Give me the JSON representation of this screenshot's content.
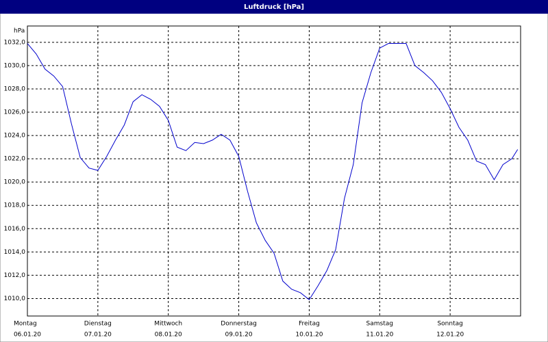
{
  "chart_data": {
    "type": "line",
    "title": "Luftdruck [hPa]",
    "y_unit": "hPa",
    "x": [
      0,
      3,
      6,
      9,
      12,
      15,
      18,
      21,
      24,
      27,
      30,
      33,
      36,
      39,
      42,
      45,
      48,
      51,
      54,
      57,
      60,
      63,
      66,
      69,
      72,
      75,
      78,
      81,
      84,
      87,
      90,
      93,
      96,
      99,
      102,
      105,
      108,
      111,
      114,
      117,
      120,
      123,
      126,
      129,
      132,
      135,
      138,
      141,
      144,
      147,
      150,
      153,
      156,
      159,
      162,
      165,
      167
    ],
    "series": [
      {
        "name": "Luftdruck",
        "color": "#0000cc",
        "values": [
          1031.9,
          1031.0,
          1029.7,
          1029.1,
          1028.2,
          1025.0,
          1022.1,
          1021.2,
          1021.0,
          1022.2,
          1023.6,
          1024.9,
          1026.9,
          1027.5,
          1027.1,
          1026.5,
          1025.3,
          1023.0,
          1022.7,
          1023.4,
          1023.3,
          1023.6,
          1024.1,
          1023.6,
          1022.2,
          1019.2,
          1016.5,
          1015.0,
          1013.9,
          1011.5,
          1010.8,
          1010.5,
          1009.9,
          1011.1,
          1012.4,
          1014.2,
          1018.6,
          1021.5,
          1026.8,
          1029.4,
          1031.5,
          1031.9,
          1031.9,
          1031.9,
          1030.0,
          1029.4,
          1028.7,
          1027.7,
          1026.3,
          1024.7,
          1023.6,
          1021.8,
          1021.5,
          1020.2,
          1021.5,
          1022.0,
          1022.8
        ]
      }
    ],
    "xlim": [
      0,
      168
    ],
    "xticks": [
      {
        "value": 0,
        "label": "Montag",
        "date": "06.01.20"
      },
      {
        "value": 24,
        "label": "Dienstag",
        "date": "07.01.20"
      },
      {
        "value": 48,
        "label": "Mittwoch",
        "date": "08.01.20"
      },
      {
        "value": 72,
        "label": "Donnerstag",
        "date": "09.01.20"
      },
      {
        "value": 96,
        "label": "Freitag",
        "date": "10.01.20"
      },
      {
        "value": 120,
        "label": "Samstag",
        "date": "11.01.20"
      },
      {
        "value": 144,
        "label": "Sonntag",
        "date": "12.01.20"
      }
    ],
    "ylim": [
      1008.5,
      1033.4
    ],
    "yticks": [
      {
        "value": 1010,
        "label": "1010,0"
      },
      {
        "value": 1012,
        "label": "1012,0"
      },
      {
        "value": 1014,
        "label": "1014,0"
      },
      {
        "value": 1016,
        "label": "1016,0"
      },
      {
        "value": 1018,
        "label": "1018,0"
      },
      {
        "value": 1020,
        "label": "1020,0"
      },
      {
        "value": 1022,
        "label": "1022,0"
      },
      {
        "value": 1024,
        "label": "1024,0"
      },
      {
        "value": 1026,
        "label": "1026,0"
      },
      {
        "value": 1028,
        "label": "1028,0"
      },
      {
        "value": 1030,
        "label": "1030,0"
      },
      {
        "value": 1032,
        "label": "1032,0"
      }
    ],
    "grid": true
  }
}
